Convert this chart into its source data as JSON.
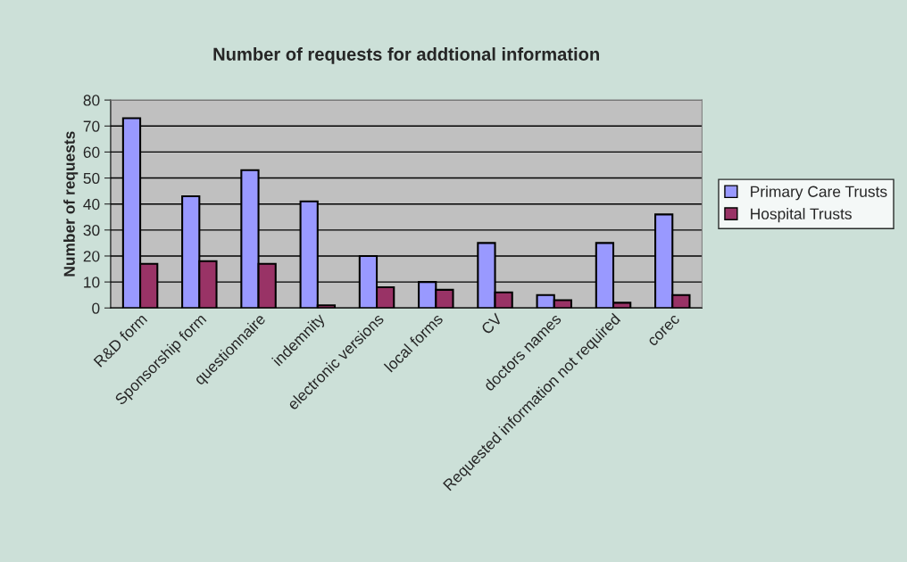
{
  "chart_data": {
    "type": "bar",
    "title": "Number of requests for addtional information",
    "ylabel": "Number of requests",
    "categories": [
      "R&D form",
      "Sponsorship form",
      "questionnaire",
      "indemnity",
      "electronic versions",
      "local forms",
      "CV",
      "doctors names",
      "Requested information not required",
      "corec"
    ],
    "series": [
      {
        "name": "Primary Care Trusts",
        "color": "#9999ff",
        "values": [
          73,
          43,
          53,
          41,
          20,
          10,
          25,
          5,
          25,
          36
        ]
      },
      {
        "name": "Hospital Trusts",
        "color": "#993366",
        "values": [
          17,
          18,
          17,
          1,
          8,
          7,
          6,
          3,
          2,
          5
        ]
      }
    ],
    "ylim": [
      0,
      80
    ],
    "yticks": [
      0,
      10,
      20,
      30,
      40,
      50,
      60,
      70,
      80
    ],
    "grid": "y",
    "legend": "right"
  }
}
